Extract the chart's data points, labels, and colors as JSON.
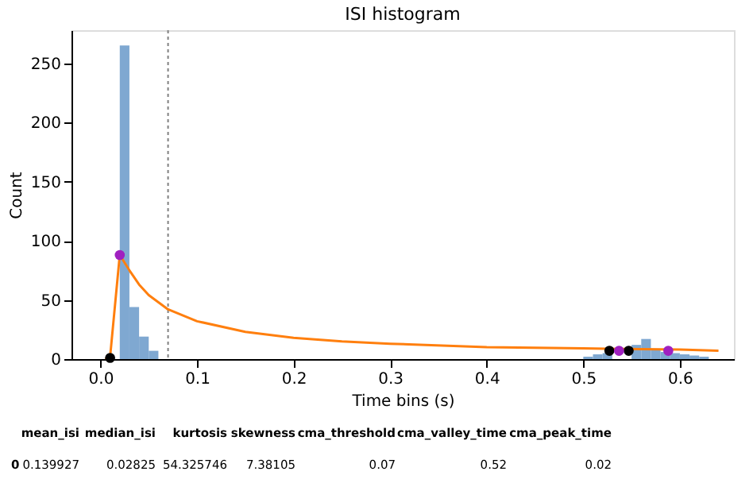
{
  "chart_data": {
    "type": "histogram",
    "title": "ISI histogram",
    "xlabel": "Time bins (s)",
    "ylabel": "Count",
    "bins": [
      0.0,
      0.01,
      0.02,
      0.03,
      0.04,
      0.05,
      0.06,
      0.07,
      0.08,
      0.09,
      0.1,
      0.11,
      0.12,
      0.13,
      0.14,
      0.15,
      0.16,
      0.17,
      0.18,
      0.19,
      0.2,
      0.21,
      0.22,
      0.23,
      0.24,
      0.25,
      0.26,
      0.27,
      0.28,
      0.29,
      0.3,
      0.31,
      0.32,
      0.33,
      0.34,
      0.35,
      0.36,
      0.37,
      0.38,
      0.39,
      0.4,
      0.41,
      0.42,
      0.43,
      0.44,
      0.45,
      0.46,
      0.47,
      0.48,
      0.49,
      0.5,
      0.51,
      0.52,
      0.53,
      0.54,
      0.55,
      0.56,
      0.57,
      0.58,
      0.59,
      0.6,
      0.61,
      0.62,
      0.63
    ],
    "values": [
      0,
      0,
      265,
      44,
      19,
      7,
      0,
      0,
      0,
      0,
      0,
      0,
      0,
      0,
      0,
      0,
      0,
      0,
      0,
      0,
      0,
      0,
      0,
      0,
      0,
      0,
      0,
      0,
      0,
      0,
      0,
      0,
      0,
      0,
      0,
      0,
      0,
      0,
      0,
      0,
      0,
      0,
      0,
      0,
      0,
      0,
      0,
      0,
      0,
      0,
      2,
      4,
      5,
      null,
      null,
      12,
      17,
      8,
      6,
      5,
      4,
      3,
      2
    ],
    "color": "#7fa8d1",
    "series": [
      {
        "type": "line",
        "color": "#ff7f0e",
        "x": [
          0.005,
          0.01,
          0.02,
          0.03,
          0.04,
          0.05,
          0.07,
          0.1,
          0.15,
          0.2,
          0.25,
          0.3,
          0.4,
          0.5,
          0.6,
          0.64
        ],
        "values": [
          0,
          2,
          88,
          75,
          63,
          54,
          42,
          32,
          23,
          18,
          15,
          13,
          10,
          9,
          8,
          7
        ]
      },
      {
        "type": "scatter",
        "marker": "circle",
        "color": "#000000",
        "x": [
          0.01,
          0.527,
          0.547
        ],
        "values": [
          1,
          7,
          7
        ]
      },
      {
        "type": "scatter",
        "marker": "circle",
        "color": "#a020c0",
        "x": [
          0.02,
          0.537,
          0.588
        ],
        "values": [
          88,
          7,
          7
        ]
      }
    ],
    "ref_lines": [
      {
        "axis": "x",
        "value": 0.07,
        "color": "#808080",
        "line_style": "dotted"
      }
    ],
    "xlim": [
      -0.03,
      0.656
    ],
    "ylim": [
      0,
      278
    ],
    "xticks": [
      {
        "value": 0,
        "label": "0.0"
      },
      0.1,
      0.2,
      0.3,
      0.4,
      0.5,
      0.6
    ],
    "yticks": [
      0,
      50,
      100,
      150,
      200,
      250
    ],
    "grid": false,
    "annotations": [
      "mean_isi",
      "median_isi",
      "kurtosis",
      "skewness",
      "cma_threshold",
      "cma_valley_time",
      "cma_peak_time",
      "0",
      "0.139927",
      "0.02825",
      "54.325746",
      "7.38105",
      "0.07",
      "0.52",
      "0.02"
    ]
  }
}
